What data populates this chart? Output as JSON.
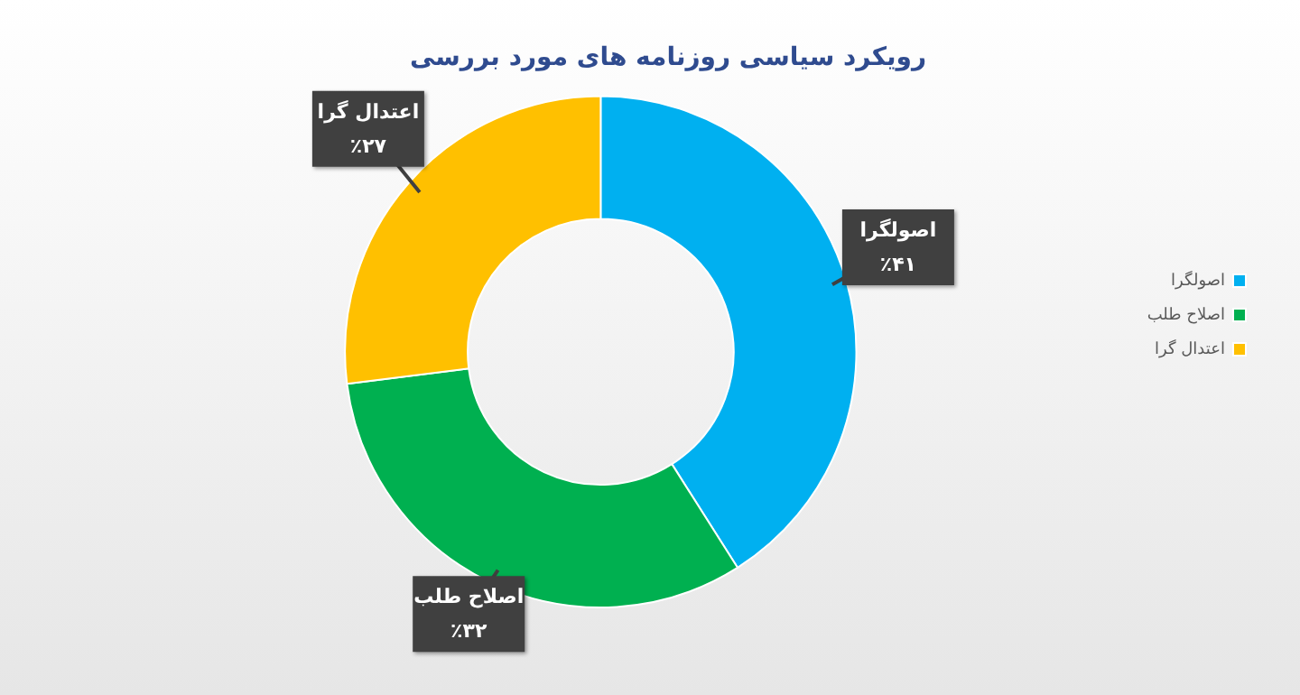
{
  "chart_data": {
    "type": "donut",
    "title": "رویکرد سیاسی روزنامه های مورد بررسی",
    "categories": [
      "اصولگرا",
      "اصلاح طلب",
      "اعتدال گرا"
    ],
    "values": [
      41,
      32,
      27
    ],
    "value_labels": [
      "٪۴۱",
      "٪۳۲",
      "٪۲۷"
    ],
    "colors": [
      "#00b0f0",
      "#00b050",
      "#ffc000"
    ],
    "legend": "right"
  }
}
